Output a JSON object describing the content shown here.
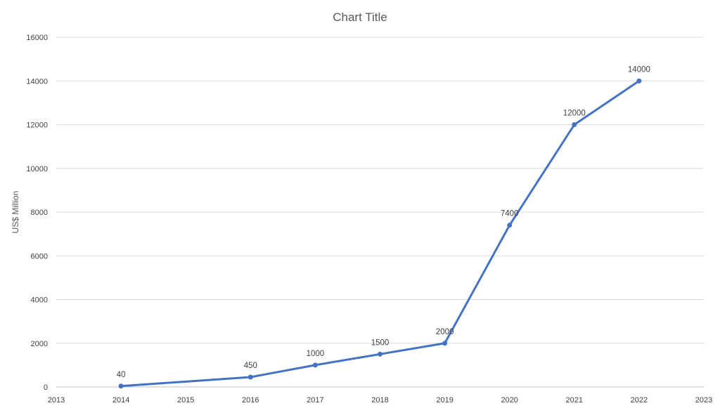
{
  "chart_data": {
    "type": "line",
    "title": "Chart Title",
    "xlabel": "",
    "ylabel": "US$ Million",
    "xlim": [
      2013,
      2023
    ],
    "ylim": [
      0,
      16000
    ],
    "x_ticks": [
      2013,
      2014,
      2015,
      2016,
      2017,
      2018,
      2019,
      2020,
      2021,
      2022,
      2023
    ],
    "y_ticks": [
      0,
      2000,
      4000,
      6000,
      8000,
      10000,
      12000,
      14000,
      16000
    ],
    "grid": true,
    "legend": "none",
    "color": "#4472c4",
    "series": [
      {
        "points": [
          {
            "x": 2014,
            "y": 40,
            "label": "40"
          },
          {
            "x": 2016,
            "y": 450,
            "label": "450"
          },
          {
            "x": 2017,
            "y": 1000,
            "label": "1000"
          },
          {
            "x": 2018,
            "y": 1500,
            "label": "1500"
          },
          {
            "x": 2019,
            "y": 2000,
            "label": "2000"
          },
          {
            "x": 2020,
            "y": 7400,
            "label": "7400"
          },
          {
            "x": 2021,
            "y": 12000,
            "label": "12000"
          },
          {
            "x": 2022,
            "y": 14000,
            "label": "14000"
          }
        ]
      }
    ]
  }
}
